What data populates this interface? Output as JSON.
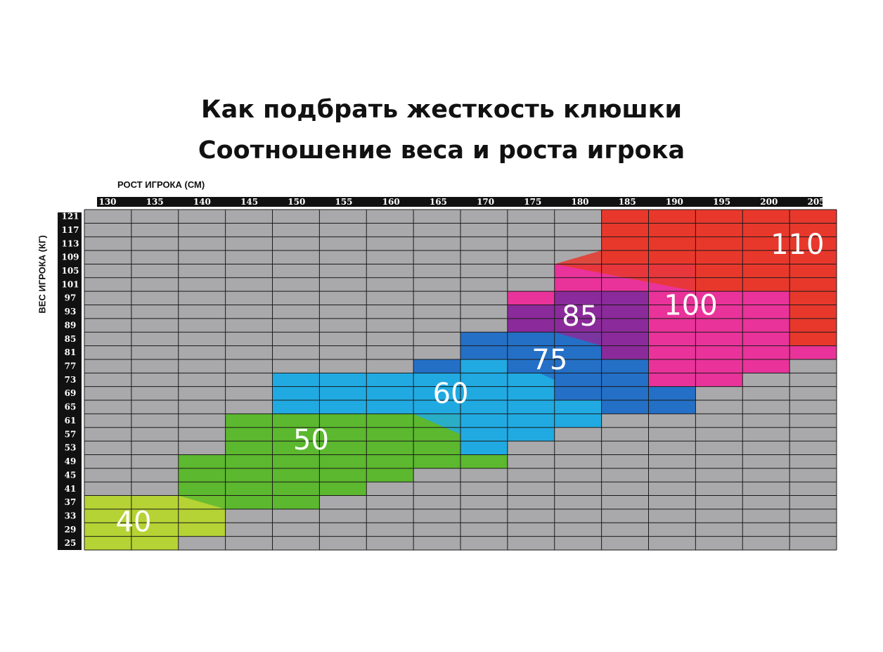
{
  "chart_data": {
    "type": "heatmap",
    "title": "Как подбрать жесткость клюшки",
    "subtitle": "Соотношение веса и роста игрока",
    "xlabel": "РОСТ ИГРОКА (СМ)",
    "ylabel": "ВЕС ИГРОКА (КГ)",
    "x_ticks": [
      130,
      135,
      140,
      145,
      150,
      155,
      160,
      165,
      170,
      175,
      180,
      185,
      190,
      195,
      200,
      205
    ],
    "y_ticks": [
      121,
      117,
      113,
      109,
      105,
      101,
      97,
      93,
      89,
      85,
      81,
      77,
      73,
      69,
      65,
      61,
      57,
      53,
      49,
      45,
      41,
      37,
      33,
      29,
      25
    ],
    "zones": [
      {
        "name": "40",
        "color": "#b5d334"
      },
      {
        "name": "50",
        "color": "#5cb82e"
      },
      {
        "name": "60",
        "color": "#21aae2"
      },
      {
        "name": "75",
        "color": "#2470c7"
      },
      {
        "name": "85",
        "color": "#8b2a9a"
      },
      {
        "name": "100",
        "color": "#e9339a"
      },
      {
        "name": "110",
        "color": "#e8382c"
      }
    ],
    "background_color": "#a9a9ab",
    "grid": true
  },
  "texts": {
    "title": "Как подбрать жесткость клюшки",
    "subtitle": "Соотношение веса и роста игрока",
    "xlabel": "РОСТ ИГРОКА (СМ)",
    "ylabel": "ВЕС ИГРОКА (КГ)"
  }
}
